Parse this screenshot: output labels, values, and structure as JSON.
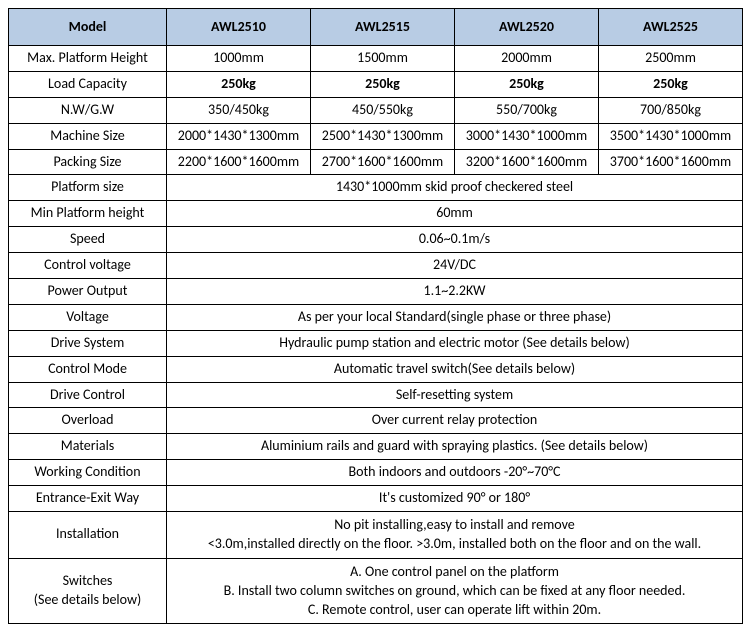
{
  "header": [
    "Model",
    "AWL2510",
    "AWL2515",
    "AWL2520",
    "AWL2525"
  ],
  "perModelRows": [
    {
      "label": "Max. Platform Height",
      "vals": [
        "1000mm",
        "1500mm",
        "2000mm",
        "2500mm"
      ],
      "bold": false
    },
    {
      "label": "Load Capacity",
      "vals": [
        "250kg",
        "250kg",
        "250kg",
        "250kg"
      ],
      "bold": true
    },
    {
      "label": "N.W/G.W",
      "vals": [
        "350/450kg",
        "450/550kg",
        "550/700kg",
        "700/850kg"
      ],
      "bold": false
    },
    {
      "label": "Machine Size",
      "vals": [
        "2000*1430*1300mm",
        "2500*1430*1300mm",
        "3000*1430*1000mm",
        "3500*1430*1000mm"
      ],
      "bold": false
    },
    {
      "label": "Packing Size",
      "vals": [
        "2200*1600*1600mm",
        "2700*1600*1600mm",
        "3200*1600*1600mm",
        "3700*1600*1600mm"
      ],
      "bold": false
    }
  ],
  "spanRows": [
    {
      "label": "Platform size",
      "text": "1430*1000mm skid proof checkered steel"
    },
    {
      "label": "Min Platform height",
      "text": "60mm"
    },
    {
      "label": "Speed",
      "text": "0.06~0.1m/s"
    },
    {
      "label": "Control voltage",
      "text": "24V/DC"
    },
    {
      "label": "Power Output",
      "text": "1.1~2.2KW"
    },
    {
      "label": "Voltage",
      "text": "As per your local Standard(single phase or three phase)"
    },
    {
      "label": "Drive System",
      "text": "Hydraulic pump station and electric motor (See details below)"
    },
    {
      "label": "Control Mode",
      "text": "Automatic travel switch(See details below)"
    },
    {
      "label": "Drive Control",
      "text": "Self-resetting system"
    },
    {
      "label": "Overload",
      "text": "Over current relay protection"
    },
    {
      "label": "Materials",
      "text": "Aluminium rails and guard with spraying plastics. (See details below)"
    },
    {
      "label": "Working Condition",
      "text": "Both indoors and outdoors -20°~70°C"
    },
    {
      "label": "Entrance-Exit Way",
      "text": "It's customized 90° or   180°"
    }
  ],
  "installation": {
    "label": "Installation",
    "line1": "No pit installing,easy to install and remove",
    "line2": "<3.0m,installed directly on the floor.   >3.0m, installed both on the floor and on the wall."
  },
  "switches": {
    "label1": "Switches",
    "label2": "(See details below)",
    "line1": "A.  One control panel on the platform",
    "line2": "B.  Install two column switches on ground, which can be fixed at any floor needed.",
    "line3": "C.  Remote control, user can operate lift within 20m."
  }
}
